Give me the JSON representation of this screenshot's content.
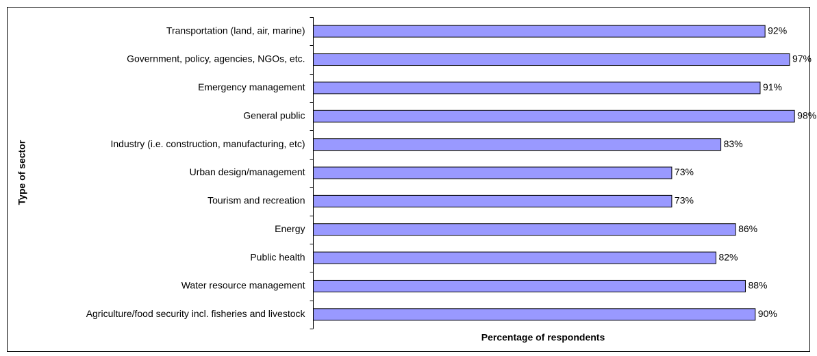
{
  "chart_data": {
    "type": "barh",
    "xlabel": "Percentage of respondents",
    "ylabel": "Type of sector",
    "categories": [
      "Transportation (land, air, marine)",
      "Government, policy, agencies, NGOs, etc.",
      "Emergency management",
      "General public",
      "Industry (i.e. construction, manufacturing, etc)",
      "Urban design/management",
      "Tourism and recreation",
      "Energy",
      "Public health",
      "Water resource management",
      "Agriculture/food security incl. fisheries and livestock"
    ],
    "values": [
      92,
      97,
      91,
      98,
      83,
      73,
      73,
      86,
      82,
      88,
      90
    ],
    "value_labels": [
      "92%",
      "97%",
      "91%",
      "98%",
      "83%",
      "73%",
      "73%",
      "86%",
      "82%",
      "88%",
      "90%"
    ],
    "color": "#9999ff",
    "xlim": [
      0,
      100
    ]
  }
}
